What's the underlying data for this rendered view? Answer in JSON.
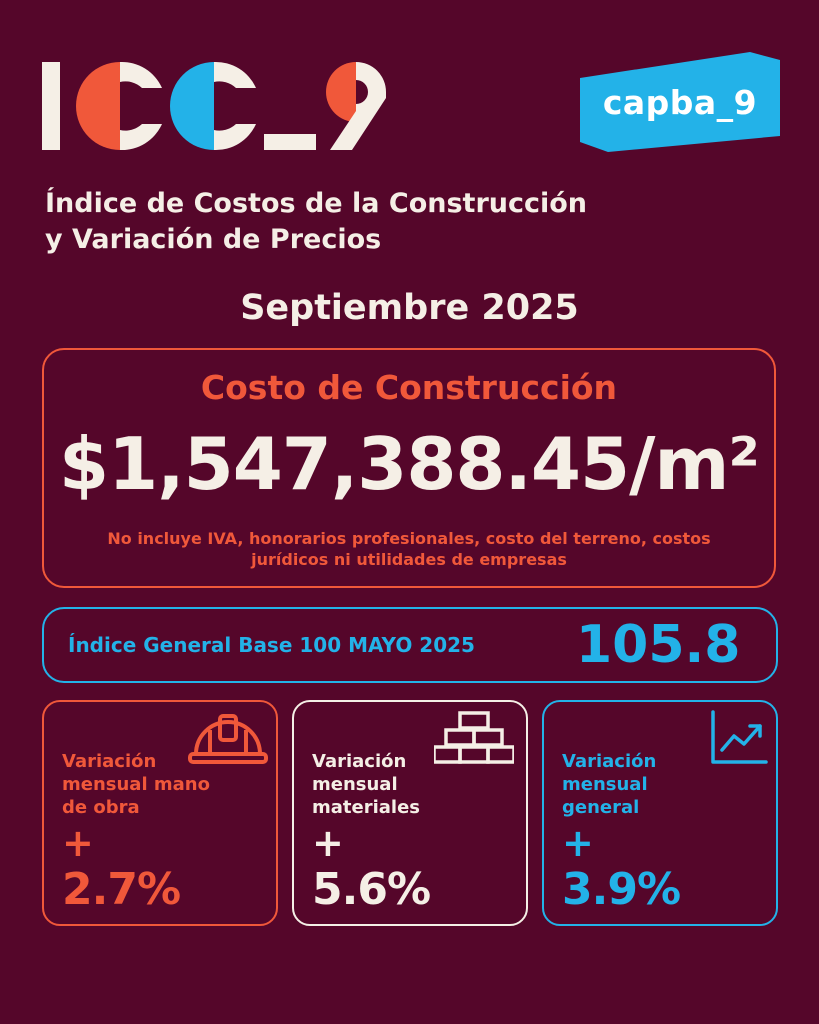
{
  "logo": {
    "text": "ICC_9"
  },
  "badge": {
    "text": "capba_9"
  },
  "subtitle": {
    "line1": "Índice de Costos de la Construcción",
    "line2": "y Variación de Precios"
  },
  "period": "Septiembre 2025",
  "cost": {
    "title": "Costo de Construcción",
    "value": "$1,547,388.45/m²",
    "note": "No incluye IVA, honorarios profesionales, costo del terreno, costos jurídicos ni utilidades de empresas"
  },
  "index": {
    "label": "Índice General Base 100 MAYO 2025",
    "value": "105.8"
  },
  "variations": {
    "labor": {
      "label": "Variación mensual mano de obra",
      "sign": "+",
      "value": "2.7%",
      "icon": "hard-hat-icon",
      "color": "#f0583a"
    },
    "materials": {
      "label": "Variación mensual materiales",
      "sign": "+",
      "value": "5.6%",
      "icon": "bricks-icon",
      "color": "#f5efe6"
    },
    "general": {
      "label": "Variación mensual general",
      "sign": "+",
      "value": "3.9%",
      "icon": "trend-chart-icon",
      "color": "#23b2e8"
    }
  },
  "colors": {
    "background": "#55062a",
    "accent_orange": "#f0583a",
    "accent_blue": "#23b2e8",
    "cream": "#f5efe6"
  }
}
